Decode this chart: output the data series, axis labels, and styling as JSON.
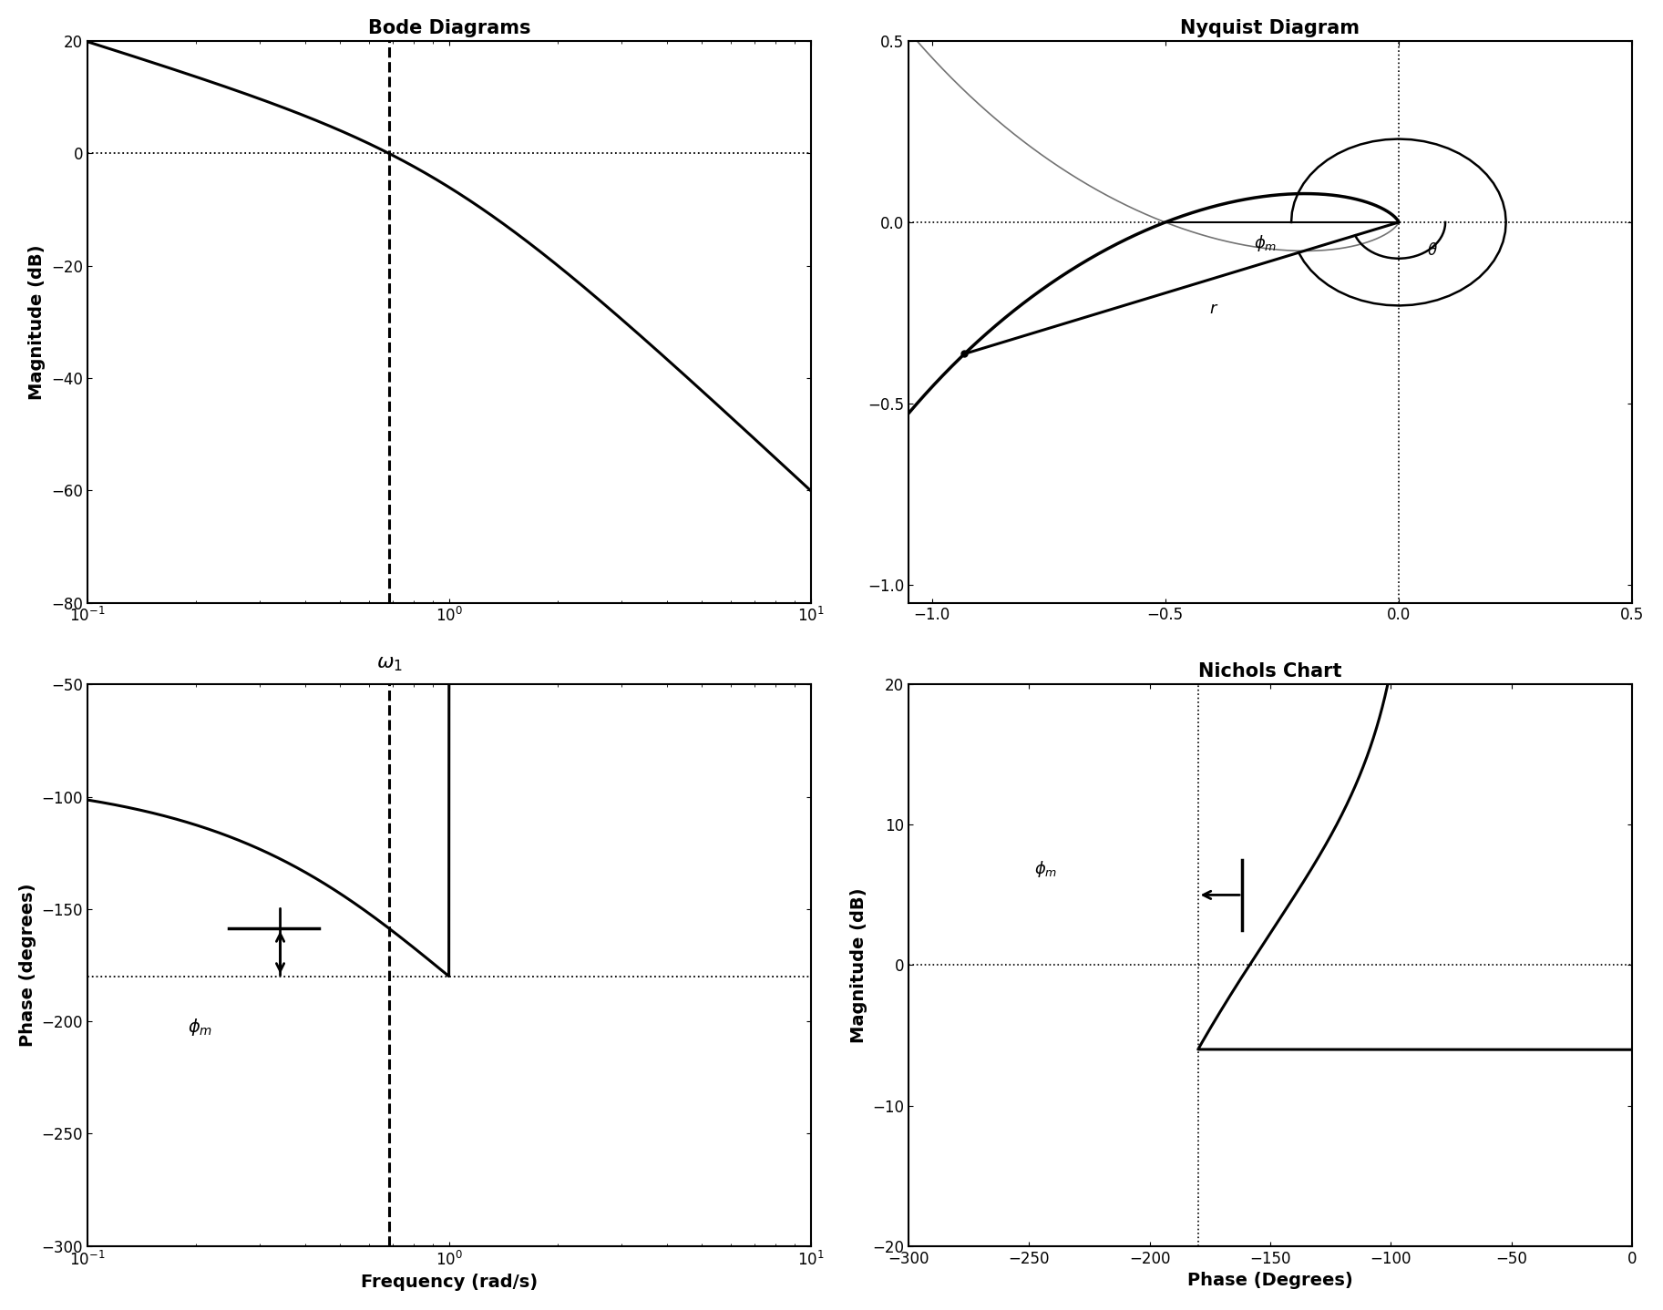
{
  "bode_title": "Bode Diagrams",
  "nyquist_title": "Nyquist Diagram",
  "phase_xlabel": "Frequency (rad/s)",
  "phase_ylabel": "Phase (degrees)",
  "mag_ylabel": "Magnitude (dB)",
  "nichols_title": "Nichols Chart",
  "nichols_xlabel": "Phase (Degrees)",
  "nichols_ylabel": "Magnitude (dB)",
  "mag_ylim": [
    -80,
    20
  ],
  "phase_ylim": [
    -300,
    -50
  ],
  "nyquist_xlim": [
    -1.05,
    0.5
  ],
  "nyquist_ylim": [
    -1.05,
    0.5
  ],
  "nichols_xlim": [
    -300,
    0
  ],
  "nichols_ylim": [
    -20,
    20
  ],
  "background_color": "#ffffff",
  "line_color": "#000000"
}
